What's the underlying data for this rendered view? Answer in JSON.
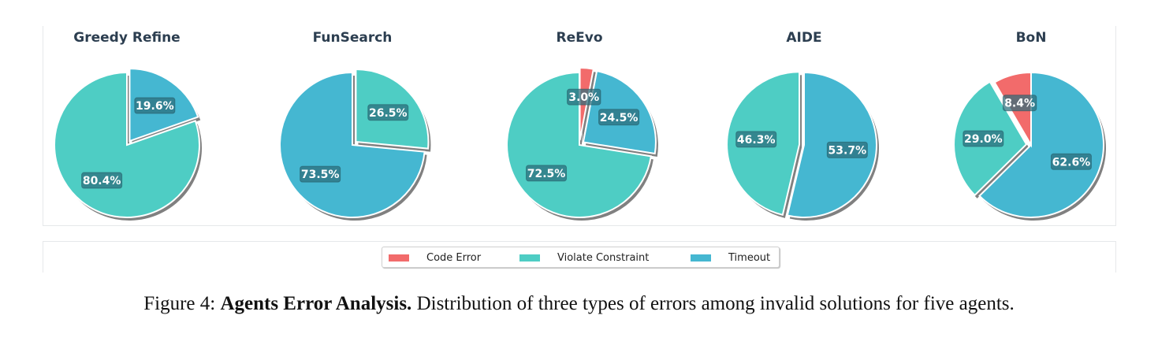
{
  "colors": {
    "Code Error": "#f26b6b",
    "Violate Constraint": "#4ecdc4",
    "Timeout": "#45b7d1"
  },
  "chart_data": [
    {
      "type": "pie",
      "title": "Greedy Refine",
      "slices": [
        {
          "label": "Timeout",
          "value": 19.6,
          "text": "19.6%",
          "explode": true
        },
        {
          "label": "Violate Constraint",
          "value": 80.4,
          "text": "80.4%",
          "explode": false
        }
      ]
    },
    {
      "type": "pie",
      "title": "FunSearch",
      "slices": [
        {
          "label": "Violate Constraint",
          "value": 26.5,
          "text": "26.5%",
          "explode": true
        },
        {
          "label": "Timeout",
          "value": 73.5,
          "text": "73.5%",
          "explode": false
        }
      ]
    },
    {
      "type": "pie",
      "title": "ReEvo",
      "slices": [
        {
          "label": "Code Error",
          "value": 3.0,
          "text": "3.0%",
          "explode": true
        },
        {
          "label": "Timeout",
          "value": 24.5,
          "text": "24.5%",
          "explode": true
        },
        {
          "label": "Violate Constraint",
          "value": 72.5,
          "text": "72.5%",
          "explode": false
        }
      ]
    },
    {
      "type": "pie",
      "title": "AIDE",
      "slices": [
        {
          "label": "Timeout",
          "value": 53.7,
          "text": "53.7%",
          "explode": false
        },
        {
          "label": "Violate Constraint",
          "value": 46.3,
          "text": "46.3%",
          "explode": true
        }
      ]
    },
    {
      "type": "pie",
      "title": "BoN",
      "slices": [
        {
          "label": "Timeout",
          "value": 62.6,
          "text": "62.6%",
          "explode": false
        },
        {
          "label": "Violate Constraint",
          "value": 29.0,
          "text": "29.0%",
          "explode": true
        },
        {
          "label": "Code Error",
          "value": 8.4,
          "text": "8.4%",
          "explode": false
        }
      ]
    }
  ],
  "legend": {
    "items": [
      "Code Error",
      "Violate Constraint",
      "Timeout"
    ]
  },
  "caption": {
    "prefix": "Figure 4: ",
    "bold": "Agents Error Analysis.",
    "rest": " Distribution of three types of errors among invalid solutions for five agents."
  }
}
